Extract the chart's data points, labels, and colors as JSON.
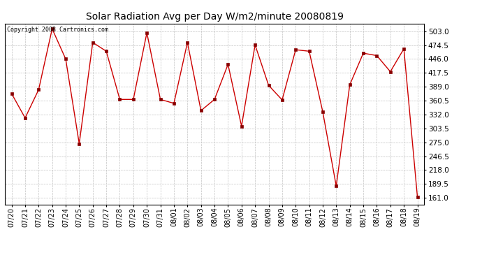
{
  "title": "Solar Radiation Avg per Day W/m2/minute 20080819",
  "copyright_text": "Copyright 2008 Cartronics.com",
  "x_labels": [
    "07/20",
    "07/21",
    "07/22",
    "07/23",
    "07/24",
    "07/25",
    "07/26",
    "07/27",
    "07/28",
    "07/29",
    "07/30",
    "07/31",
    "08/01",
    "08/02",
    "08/03",
    "08/04",
    "08/05",
    "08/06",
    "08/07",
    "08/08",
    "08/09",
    "08/10",
    "08/11",
    "08/12",
    "08/13",
    "08/14",
    "08/15",
    "08/16",
    "08/17",
    "08/18",
    "08/19"
  ],
  "y_values": [
    375,
    325,
    383,
    508,
    446,
    272,
    480,
    462,
    363,
    363,
    500,
    363,
    355,
    480,
    340,
    363,
    435,
    308,
    475,
    392,
    362,
    465,
    462,
    338,
    185,
    393,
    458,
    453,
    420,
    467,
    163
  ],
  "line_color": "#cc0000",
  "marker_color": "#880000",
  "bg_color": "#ffffff",
  "grid_color": "#bbbbbb",
  "ylim_min": 147.5,
  "ylim_max": 518.75,
  "ytick_values": [
    161.0,
    189.5,
    218.0,
    246.5,
    275.0,
    303.5,
    332.0,
    360.5,
    389.0,
    417.5,
    446.0,
    474.5,
    503.0
  ]
}
